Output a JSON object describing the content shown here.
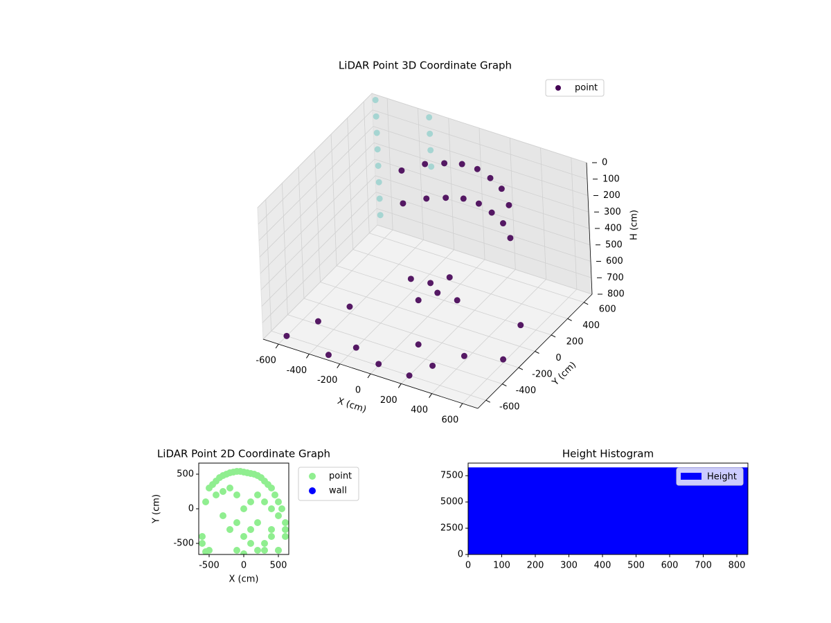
{
  "chart_data": [
    {
      "type": "scatter3d",
      "title": "LiDAR Point 3D Coordinate Graph",
      "x_label": "X (cm)",
      "y_label": "Y (cm)",
      "z_label": "H (cm)",
      "xlim": [
        -700,
        700
      ],
      "ylim": [
        -700,
        700
      ],
      "zlim": [
        800,
        0
      ],
      "xticks": [
        -600,
        -400,
        -200,
        0,
        200,
        400,
        600
      ],
      "yticks": [
        -600,
        -400,
        -200,
        0,
        200,
        400,
        600
      ],
      "zticks": [
        0,
        100,
        200,
        300,
        400,
        500,
        600,
        700,
        800
      ],
      "grid": true,
      "legend": "upper right",
      "series": [
        {
          "name": "point",
          "color": "#440154",
          "x": [
            -300,
            -200,
            -100,
            0,
            100,
            200,
            300,
            400,
            -300,
            -200,
            -100,
            0,
            100,
            200,
            300,
            400,
            -100,
            0,
            100,
            200,
            0,
            100,
            -600,
            -500,
            -400,
            -200,
            0,
            200,
            400,
            600,
            -300,
            300,
            500,
            100
          ],
          "y": [
            300,
            400,
            450,
            480,
            480,
            450,
            400,
            300,
            300,
            400,
            450,
            480,
            480,
            450,
            400,
            300,
            0,
            50,
            100,
            0,
            -100,
            -50,
            -600,
            -400,
            -200,
            -500,
            -600,
            -600,
            -300,
            -200,
            -650,
            -500,
            200,
            -300
          ],
          "z": [
            150,
            130,
            120,
            110,
            110,
            120,
            130,
            150,
            350,
            340,
            330,
            320,
            320,
            330,
            340,
            350,
            600,
            620,
            580,
            640,
            650,
            600,
            800,
            780,
            760,
            800,
            790,
            800,
            770,
            780,
            800,
            760,
            800,
            790
          ]
        },
        {
          "color": "#9fd3cf",
          "x": [
            -650,
            -650,
            -650,
            -650,
            -650,
            -650,
            -650,
            -650,
            -300,
            -300,
            -300,
            -300
          ],
          "y": [
            650,
            650,
            650,
            650,
            650,
            650,
            650,
            650,
            650,
            650,
            650,
            650
          ],
          "z": [
            0,
            100,
            200,
            300,
            400,
            500,
            600,
            700,
            0,
            100,
            200,
            300
          ]
        }
      ]
    },
    {
      "type": "scatter",
      "title": "LiDAR Point 2D Coordinate Graph",
      "x_label": "X (cm)",
      "y_label": "Y (cm)",
      "xlim": [
        -650,
        650
      ],
      "ylim": [
        -660,
        660
      ],
      "xticks": [
        -500,
        0,
        500
      ],
      "yticks": [
        -500,
        0,
        500
      ],
      "legend": "outside right",
      "series": [
        {
          "name": "point",
          "color": "#90ee90",
          "x": [
            -600,
            -550,
            -500,
            -450,
            -400,
            -350,
            -300,
            -250,
            -200,
            -150,
            -100,
            -50,
            0,
            50,
            100,
            150,
            200,
            250,
            300,
            350,
            400,
            450,
            500,
            550,
            600,
            -400,
            -300,
            -200,
            -100,
            0,
            100,
            200,
            300,
            400,
            500,
            600,
            -300,
            -200,
            -100,
            0,
            100,
            200,
            300,
            400,
            500,
            -100,
            0,
            100,
            200,
            300,
            400,
            500,
            600,
            -500,
            -600,
            -550
          ],
          "y": [
            -400,
            100,
            300,
            350,
            400,
            450,
            480,
            500,
            520,
            530,
            540,
            540,
            530,
            520,
            510,
            500,
            480,
            450,
            400,
            350,
            300,
            200,
            100,
            0,
            -200,
            200,
            250,
            300,
            200,
            0,
            100,
            200,
            100,
            0,
            -100,
            -300,
            -100,
            -300,
            -200,
            -400,
            -500,
            -600,
            -500,
            -400,
            -600,
            -600,
            -650,
            -300,
            -200,
            -600,
            -300,
            -600,
            -400,
            -600,
            -500,
            -620
          ]
        },
        {
          "name": "wall",
          "color": "#0000ff",
          "x": [],
          "y": []
        }
      ]
    },
    {
      "type": "histogram",
      "title": "Height Histogram",
      "bins": [
        0,
        833
      ],
      "values": [
        8290
      ],
      "color": "#0000ff",
      "xlim": [
        0,
        833
      ],
      "ylim": [
        0,
        8700
      ],
      "xticks": [
        0,
        100,
        200,
        300,
        400,
        500,
        600,
        700,
        800
      ],
      "yticks": [
        0,
        2500,
        5000,
        7500
      ],
      "legend": "upper right",
      "legend_label": "Height"
    }
  ]
}
